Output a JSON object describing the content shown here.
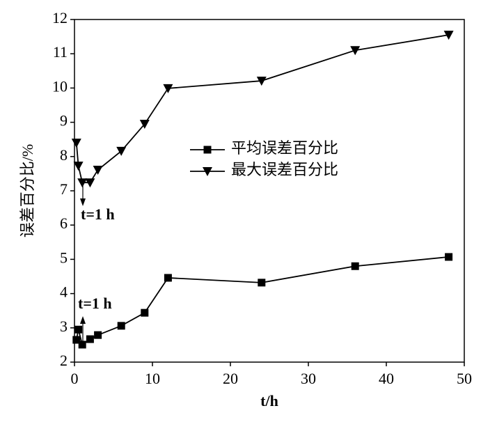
{
  "chart_data": {
    "type": "line",
    "x_label": "t/h",
    "y_label": "误差百分比/%",
    "x": [
      0.25,
      0.5,
      1,
      2,
      3,
      6,
      9,
      12,
      24,
      36,
      48
    ],
    "series": [
      {
        "name": "平均误差百分比",
        "color": "#000000",
        "marker": "square",
        "values": [
          2.65,
          2.95,
          2.51,
          2.67,
          2.79,
          3.06,
          3.44,
          4.46,
          4.32,
          4.8,
          5.07
        ]
      },
      {
        "name": "最大误差百分比",
        "color": "#000000",
        "marker": "triangle-down",
        "values": [
          8.4,
          7.73,
          7.24,
          7.24,
          7.61,
          8.16,
          8.95,
          9.99,
          10.21,
          11.1,
          11.55
        ]
      }
    ],
    "annotations": [
      "t=1 h",
      "t=1 h"
    ],
    "xlim": [
      0,
      50
    ],
    "xticks": [
      0,
      10,
      20,
      30,
      40,
      50
    ],
    "ylim": [
      2,
      12
    ],
    "yticks": [
      2,
      3,
      4,
      5,
      6,
      7,
      8,
      9,
      10,
      11,
      12
    ],
    "grid": false
  }
}
